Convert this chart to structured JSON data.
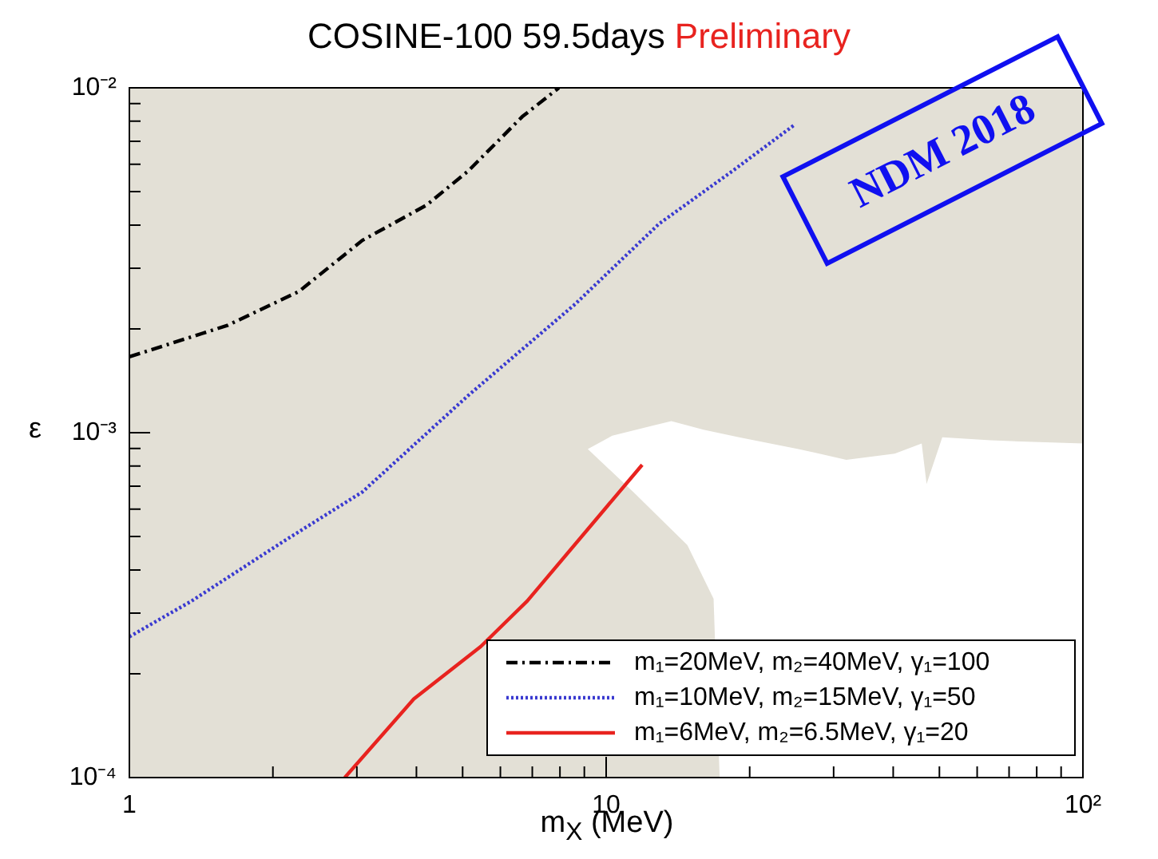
{
  "chart_data": {
    "type": "line",
    "title": "COSINE-100 59.5days",
    "xlabel": "m$_{X}$ (MeV)",
    "ylabel": "ε",
    "log": "xy",
    "legend": "bottom right",
    "annotations": [
      "Preliminary",
      "NDM 2018"
    ],
    "xlim": [
      1,
      100
    ],
    "ylim": [
      0.0001,
      0.01
    ],
    "xticks": [
      {
        "value": 1,
        "label": "1"
      },
      {
        "value": 2,
        "label": null
      },
      {
        "value": 3,
        "label": null
      },
      {
        "value": 4,
        "label": null
      },
      {
        "value": 5,
        "label": null
      },
      {
        "value": 6,
        "label": null
      },
      {
        "value": 7,
        "label": null
      },
      {
        "value": 8,
        "label": null
      },
      {
        "value": 9,
        "label": null
      },
      {
        "value": 10,
        "label": "10"
      },
      {
        "value": 20,
        "label": null
      },
      {
        "value": 30,
        "label": null
      },
      {
        "value": 40,
        "label": null
      },
      {
        "value": 50,
        "label": null
      },
      {
        "value": 60,
        "label": null
      },
      {
        "value": 70,
        "label": null
      },
      {
        "value": 80,
        "label": null
      },
      {
        "value": 90,
        "label": null
      },
      {
        "value": 100,
        "label": "10²"
      }
    ],
    "yticks": [
      {
        "value": 0.0001,
        "label": "10⁻⁴"
      },
      {
        "value": 0.0002,
        "label": null
      },
      {
        "value": 0.0003,
        "label": null
      },
      {
        "value": 0.0004,
        "label": null
      },
      {
        "value": 0.0005,
        "label": null
      },
      {
        "value": 0.0006,
        "label": null
      },
      {
        "value": 0.0007,
        "label": null
      },
      {
        "value": 0.0008,
        "label": null
      },
      {
        "value": 0.0009,
        "label": null
      },
      {
        "value": 0.001,
        "label": "10⁻³"
      },
      {
        "value": 0.002,
        "label": null
      },
      {
        "value": 0.003,
        "label": null
      },
      {
        "value": 0.004,
        "label": null
      },
      {
        "value": 0.005,
        "label": null
      },
      {
        "value": 0.006,
        "label": null
      },
      {
        "value": 0.007,
        "label": null
      },
      {
        "value": 0.008,
        "label": null
      },
      {
        "value": 0.009,
        "label": null
      },
      {
        "value": 0.01,
        "label": "10⁻²"
      }
    ],
    "series": [
      {
        "name": "m₁=20MeV, m₂=40MeV, γ₁=100",
        "type": "line",
        "color": "#000000",
        "line_style": "dashed",
        "x": [
          1,
          1.61,
          2.27,
          3.08,
          4.2,
          5.13,
          6.67,
          7.96
        ],
        "values": [
          0.00166,
          0.00205,
          0.00257,
          0.00361,
          0.00457,
          0.00573,
          0.00825,
          0.01
        ]
      },
      {
        "name": "m₁=10MeV, m₂=15MeV, γ₁=50",
        "type": "line",
        "color": "#3a3ad0",
        "line_style": "dotted",
        "x": [
          1,
          1.35,
          2.1,
          3.08,
          5.13,
          8.61,
          12.9,
          18.6,
          24.8
        ],
        "values": [
          0.000256,
          0.000325,
          0.000483,
          0.000673,
          0.00128,
          0.00236,
          0.00403,
          0.0058,
          0.0078
        ]
      },
      {
        "name": "m₁=6MeV, m₂=6.5MeV, γ₁=20",
        "type": "line",
        "color": "#e8231f",
        "line_style": "solid",
        "x": [
          2.83,
          3.95,
          5.46,
          6.83,
          11.9
        ],
        "values": [
          0.0001,
          0.000169,
          0.00024,
          0.000325,
          0.000807
        ]
      },
      {
        "type": "area",
        "color": "#ffffff",
        "x": [
          9.15,
          10.3,
          12.6,
          13.7,
          16,
          19,
          25.3,
          31.9,
          40.3,
          45.9,
          47,
          50.7,
          64,
          100
        ],
        "values": [
          0.000897,
          0.00098,
          0.00105,
          0.00108,
          0.00102,
          0.00097,
          0.000897,
          0.000834,
          0.00087,
          0.00093,
          0.00071,
          0.00097,
          0.00095,
          0.00093
        ]
      },
      {
        "type": "area",
        "color": "#e3e0d6",
        "x": [
          9.15,
          11.4,
          14.8,
          16.8,
          17.3
        ],
        "values": [
          0.000897,
          0.000673,
          0.000472,
          0.00033,
          0.0001
        ]
      }
    ],
    "bands": [
      {
        "axis": "y",
        "from": 0.0001,
        "to": 0.01,
        "color": "#e3e0d6"
      }
    ]
  }
}
